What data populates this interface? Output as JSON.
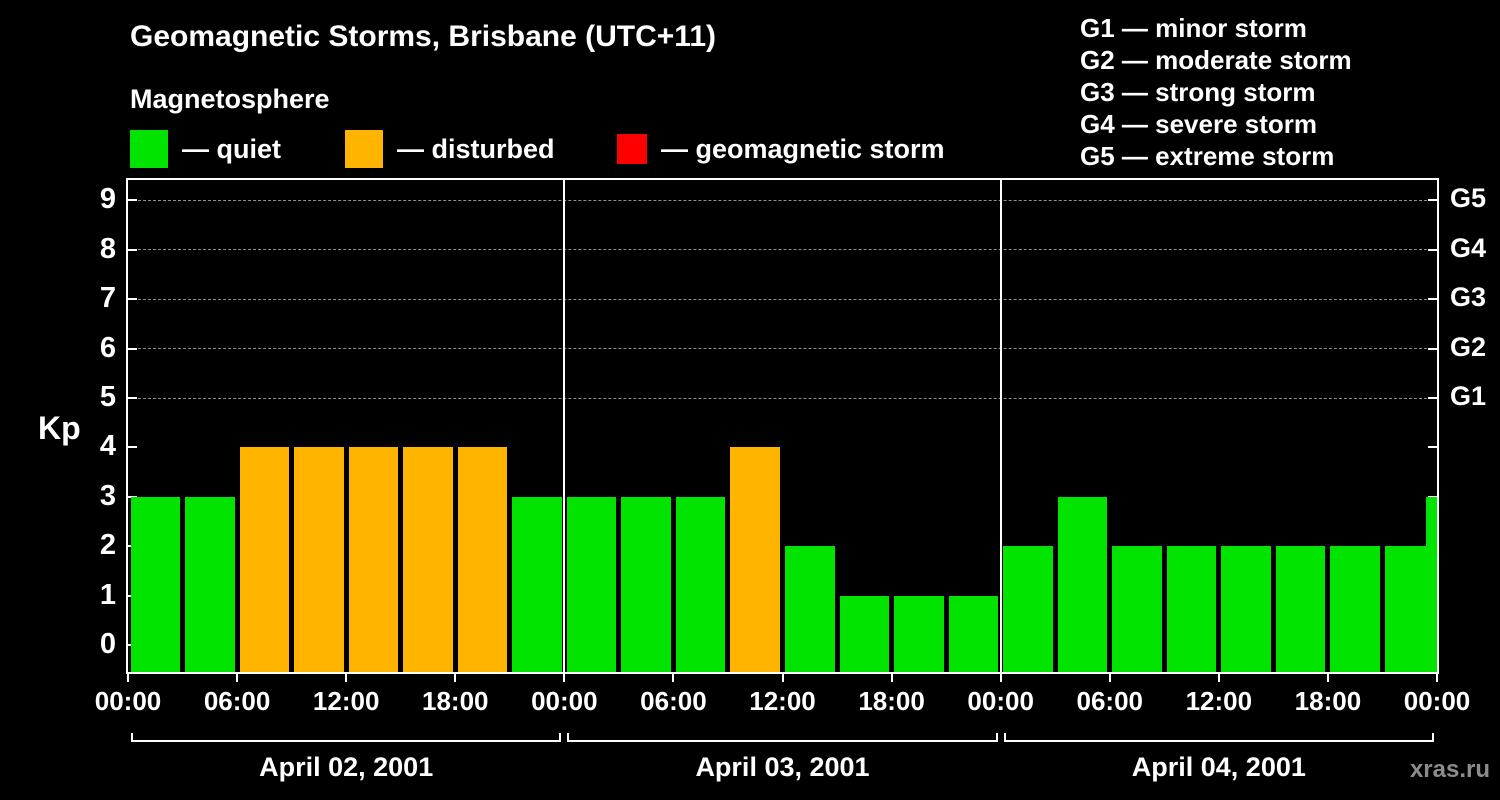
{
  "chart_data": {
    "type": "bar",
    "title": "Geomagnetic Storms, Brisbane (UTC+11)",
    "subtitle": "Magnetosphere",
    "ylabel": "Kp",
    "ylim": [
      0,
      9
    ],
    "legend": [
      {
        "key": "quiet",
        "label": "— quiet",
        "color": "#00e400"
      },
      {
        "key": "disturbed",
        "label": "— disturbed",
        "color": "#ffb400"
      },
      {
        "key": "storm",
        "label": "— geomagnetic storm",
        "color": "#ff0000"
      }
    ],
    "g_legend": [
      "G1 — minor storm",
      "G2 — moderate storm",
      "G3 — strong storm",
      "G4 — severe storm",
      "G5 — extreme storm"
    ],
    "y_ticks": [
      0,
      1,
      2,
      3,
      4,
      5,
      6,
      7,
      8,
      9
    ],
    "right_axis": {
      "labels": [
        "G1",
        "G2",
        "G3",
        "G4",
        "G5"
      ],
      "kp_levels": [
        5,
        6,
        7,
        8,
        9
      ]
    },
    "x_axis": {
      "hour_labels": [
        "00:00",
        "06:00",
        "12:00",
        "18:00",
        "00:00",
        "06:00",
        "12:00",
        "18:00",
        "00:00",
        "06:00",
        "12:00",
        "18:00",
        "00:00"
      ]
    },
    "days": [
      {
        "label": "April 02, 2001",
        "values": [
          3,
          3,
          4,
          4,
          4,
          4,
          4,
          3
        ]
      },
      {
        "label": "April 03, 2001",
        "values": [
          3,
          3,
          3,
          4,
          2,
          1,
          1,
          1
        ]
      },
      {
        "label": "April 04, 2001",
        "values": [
          2,
          3,
          2,
          2,
          2,
          2,
          2,
          2
        ]
      }
    ],
    "partial_next_bar": {
      "value": 3
    },
    "thresholds": {
      "disturbed_min": 4,
      "storm_min": 5
    },
    "colors": {
      "quiet": "#00e400",
      "disturbed": "#ffb400",
      "storm": "#ff0000",
      "background": "#000000",
      "axis": "#ffffff",
      "grid": "#8f8f8f",
      "watermark": "#8c8c8c"
    },
    "watermark": "xras.ru"
  }
}
